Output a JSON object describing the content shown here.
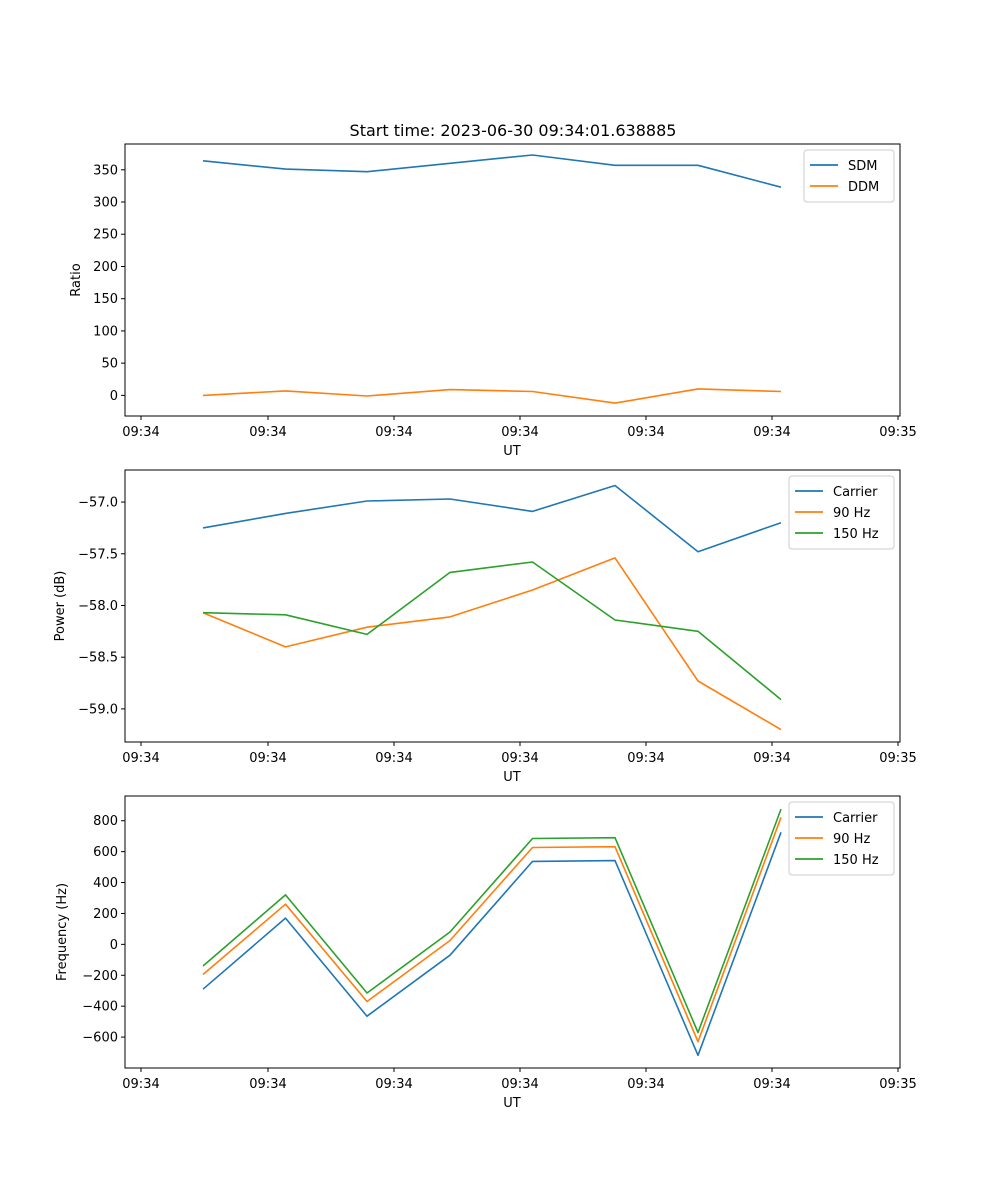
{
  "figure": {
    "title": "Start time: 2023-06-30 09:34:01.638885"
  },
  "chart_data": [
    {
      "type": "line",
      "xlabel": "UT",
      "ylabel": "Ratio",
      "x_ticks": [
        "09:34",
        "09:34",
        "09:34",
        "09:34",
        "09:34",
        "09:34",
        "09:34"
      ],
      "x_last_tick": "09:35",
      "y_ticks": [
        0,
        50,
        100,
        150,
        200,
        250,
        300,
        350
      ],
      "ylim": [
        -32,
        390
      ],
      "x_points": 8,
      "grid": false,
      "legend_position": "top-right",
      "series": [
        {
          "name": "SDM",
          "color": "#1f77b4",
          "values": [
            364,
            351,
            347,
            360,
            373,
            357,
            357,
            323
          ]
        },
        {
          "name": "DDM",
          "color": "#ff7f0e",
          "values": [
            0,
            7,
            -1,
            9,
            6,
            -12,
            10,
            6
          ]
        }
      ]
    },
    {
      "type": "line",
      "xlabel": "UT",
      "ylabel": "Power (dB)",
      "x_ticks": [
        "09:34",
        "09:34",
        "09:34",
        "09:34",
        "09:34",
        "09:34",
        "09:34"
      ],
      "x_last_tick": "09:35",
      "y_ticks": [
        "−57.0",
        "−57.5",
        "−58.0",
        "−58.5",
        "−59.0"
      ],
      "y_tick_values": [
        -57.0,
        -57.5,
        -58.0,
        -58.5,
        -59.0
      ],
      "ylim": [
        -59.32,
        -56.69
      ],
      "x_points": 8,
      "grid": false,
      "legend_position": "top-right",
      "series": [
        {
          "name": "Carrier",
          "color": "#1f77b4",
          "values": [
            -57.25,
            -57.11,
            -56.99,
            -56.97,
            -57.09,
            -56.84,
            -57.48,
            -57.2
          ]
        },
        {
          "name": "90 Hz",
          "color": "#ff7f0e",
          "values": [
            -58.07,
            -58.4,
            -58.21,
            -58.11,
            -57.85,
            -57.54,
            -58.73,
            -59.2
          ]
        },
        {
          "name": "150 Hz",
          "color": "#2ca02c",
          "values": [
            -58.07,
            -58.09,
            -58.28,
            -57.68,
            -57.58,
            -58.14,
            -58.25,
            -58.91
          ]
        }
      ]
    },
    {
      "type": "line",
      "xlabel": "UT",
      "ylabel": "Frequency (Hz)",
      "x_ticks": [
        "09:34",
        "09:34",
        "09:34",
        "09:34",
        "09:34",
        "09:34",
        "09:34"
      ],
      "x_last_tick": "09:35",
      "y_ticks": [
        "−600",
        "−400",
        "−200",
        "0",
        "200",
        "400",
        "600",
        "800"
      ],
      "y_tick_values": [
        -600,
        -400,
        -200,
        0,
        200,
        400,
        600,
        800
      ],
      "ylim": [
        -800,
        960
      ],
      "x_points": 8,
      "grid": false,
      "legend_position": "top-right",
      "series": [
        {
          "name": "Carrier",
          "color": "#1f77b4",
          "values": [
            -290,
            170,
            -465,
            -70,
            537,
            542,
            -718,
            725
          ]
        },
        {
          "name": "90 Hz",
          "color": "#ff7f0e",
          "values": [
            -195,
            260,
            -370,
            25,
            627,
            632,
            -630,
            822
          ]
        },
        {
          "name": "150 Hz",
          "color": "#2ca02c",
          "values": [
            -140,
            320,
            -315,
            80,
            685,
            690,
            -570,
            875
          ]
        }
      ]
    }
  ]
}
